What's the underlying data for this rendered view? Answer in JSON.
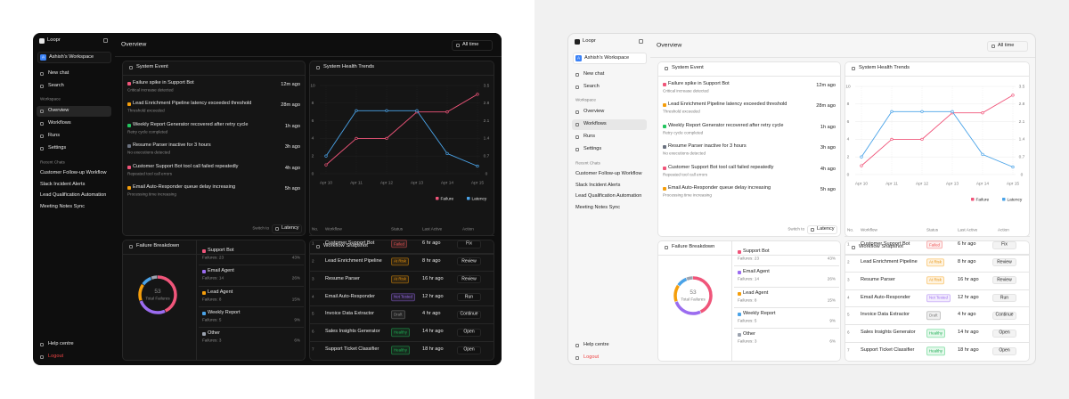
{
  "sidebar": {
    "brand": "Loopr",
    "workspace": "Ashish's Workspace",
    "avatar": "A",
    "actions": [
      "New chat",
      "Search"
    ],
    "workspace_label": "Workspace",
    "nav": [
      "Overview",
      "Workflows",
      "Runs",
      "Settings"
    ],
    "recent_label": "Recent Chats",
    "recent": [
      "Customer Follow-up Workflow",
      "Slack Incident Alerts",
      "Lead Qualification Automation",
      "Meeting Notes Sync"
    ],
    "help": "Help centre",
    "logout": "Logout"
  },
  "header": {
    "title": "Overview",
    "range": "All time"
  },
  "events": {
    "title": "System Event",
    "items": [
      {
        "title": "Failure spike in Support Bot",
        "detail": "Critical increase detected",
        "time": "12m ago",
        "color": "#f0557a"
      },
      {
        "title": "Lead Enrichment Pipeline latency exceeded threshold",
        "detail": "Threshold exceeded",
        "time": "28m ago",
        "color": "#f59e0b"
      },
      {
        "title": "Weekly Report Generator recovered after retry cycle",
        "detail": "Retry cycle completed",
        "time": "1h ago",
        "color": "#22c55e"
      },
      {
        "title": "Resume Parser inactive for 3 hours",
        "detail": "No executions detected",
        "time": "3h ago",
        "color": "#6b7280"
      },
      {
        "title": "Customer Support Bot tool call failed repeatedly",
        "detail": "Repeated tool call errors",
        "time": "4h ago",
        "color": "#f0557a"
      },
      {
        "title": "Email Auto-Responder queue delay increasing",
        "detail": "Processing time increasing",
        "time": "5h ago",
        "color": "#f59e0b"
      }
    ]
  },
  "chart_data": [
    {
      "type": "line",
      "title": "System Health Trends",
      "categories": [
        "Apr 10",
        "Apr 11",
        "Apr 12",
        "Apr 13",
        "Apr 14",
        "Apr 15"
      ],
      "series": [
        {
          "name": "Failure",
          "color": "#f0557a",
          "values": [
            1,
            4,
            4,
            7,
            7,
            9
          ]
        },
        {
          "name": "Latency",
          "color": "#4aa3e8",
          "axis": "y2",
          "values": [
            0.7,
            2.5,
            2.5,
            2.5,
            0.8,
            0.3
          ]
        }
      ],
      "ylim": [
        0,
        10
      ],
      "yticks": [
        0,
        2,
        4,
        6,
        8,
        10
      ],
      "y2lim": [
        0,
        3.5
      ],
      "y2ticks": [
        0,
        0.7,
        1.4,
        2.1,
        2.8,
        3.5
      ],
      "grid": true
    },
    {
      "type": "donut",
      "title": "Failure Breakdown",
      "switch_label": "Switch to",
      "switch_option": "Latency",
      "total": 53,
      "total_label": "Total Failures",
      "categories": [
        "Support Bot",
        "Email Agent",
        "Lead Agent",
        "Weekly Report",
        "Other"
      ],
      "values": [
        23,
        14,
        8,
        5,
        3
      ],
      "value_labels": [
        "Failures: 23",
        "Failures: 14",
        "Failures: 8",
        "Failures: 5",
        "Failures: 3"
      ],
      "share_labels": [
        "43%",
        "26%",
        "15%",
        "9%",
        "6%"
      ],
      "colors": [
        "#f0557a",
        "#9b6cf0",
        "#f59e0b",
        "#4aa3e8",
        "#9ca3af"
      ]
    }
  ],
  "table": {
    "title": "Workflow Snapshot",
    "columns": [
      "No.",
      "Workflow",
      "Status",
      "Last Active",
      "Action"
    ],
    "rows": [
      [
        1,
        "Customer Support Bot",
        "Failed",
        "6 hr ago",
        "Fix"
      ],
      [
        2,
        "Lead Enrichment Pipeline",
        "At Risk",
        "8 hr ago",
        "Review"
      ],
      [
        3,
        "Resume Parser",
        "At Risk",
        "16 hr ago",
        "Review"
      ],
      [
        4,
        "Email Auto-Responder",
        "Not Tested",
        "12 hr ago",
        "Run"
      ],
      [
        5,
        "Invoice Data Extractor",
        "Draft",
        "4 hr ago",
        "Continue"
      ],
      [
        6,
        "Sales Insights Generator",
        "Healthy",
        "14 hr ago",
        "Open"
      ],
      [
        7,
        "Support Ticket Classifier",
        "Healthy",
        "18 hr ago",
        "Open"
      ]
    ],
    "status_tones": [
      "red",
      "orange",
      "orange",
      "purple",
      "gray",
      "green",
      "green"
    ]
  }
}
